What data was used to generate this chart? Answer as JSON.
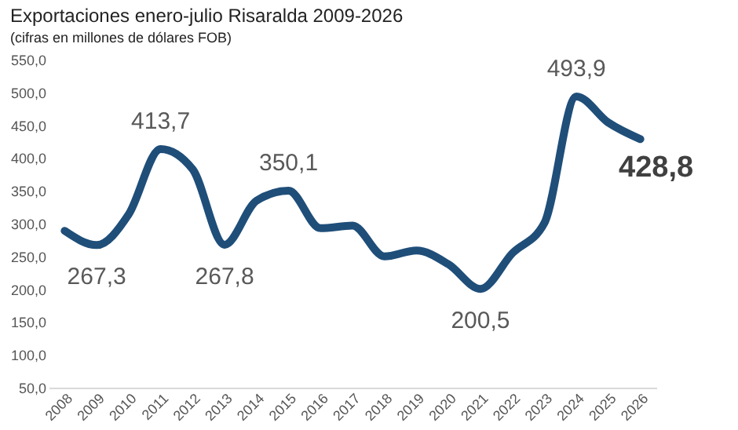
{
  "chart_data": {
    "type": "line",
    "title": "Exportaciones enero-julio Risaralda 2009-2026",
    "subtitle": "(cifras en millones de dólares FOB)",
    "categories": [
      "2008",
      "2009",
      "2010",
      "2011",
      "2012",
      "2013",
      "2014",
      "2015",
      "2016",
      "2017",
      "2018",
      "2019",
      "2020",
      "2021",
      "2022",
      "2023",
      "2024",
      "2025",
      "2026"
    ],
    "series": [
      {
        "color": "#1f4e79",
        "values": [
          289,
          267.3,
          314,
          413.7,
          383,
          267.8,
          335,
          350.1,
          293,
          297,
          250,
          259,
          238,
          200.5,
          255,
          301,
          493.9,
          454,
          428.8
        ],
        "value_labels": [
          null,
          "267,3",
          null,
          "413,7",
          null,
          "267,8",
          null,
          "350,1",
          null,
          null,
          null,
          null,
          null,
          "200,5",
          null,
          null,
          "493,9",
          null,
          "428,8"
        ]
      }
    ],
    "ylim": [
      50,
      550
    ],
    "yticks": [
      {
        "value": 50,
        "label": "50,0"
      },
      {
        "value": 100,
        "label": "100,0"
      },
      {
        "value": 150,
        "label": "150,0"
      },
      {
        "value": 200,
        "label": "200,0"
      },
      {
        "value": 250,
        "label": "250,0"
      },
      {
        "value": 300,
        "label": "300,0"
      },
      {
        "value": 350,
        "label": "350,0"
      },
      {
        "value": 400,
        "label": "400,0"
      },
      {
        "value": 450,
        "label": "450,0"
      },
      {
        "value": 500,
        "label": "500,0"
      },
      {
        "value": 550,
        "label": "550,0"
      }
    ],
    "grid": false,
    "marker": "none",
    "line_style": "solid"
  }
}
